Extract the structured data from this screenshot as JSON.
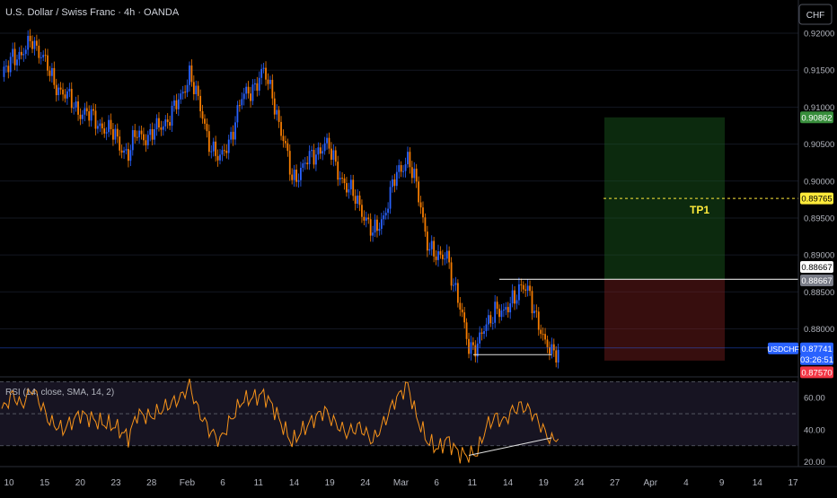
{
  "header": {
    "symbol_title": "U.S. Dollar / Swiss Franc · 4h · OANDA"
  },
  "currency_button": {
    "label": "CHF"
  },
  "colors": {
    "up": "#2962ff",
    "down": "#f57c00",
    "rsi": "#f7931a",
    "profit_zone": "#1b5e20",
    "loss_zone": "#7b1e1e",
    "tp_label": "#ffeb3b"
  },
  "chart_data": [
    {
      "type": "candlestick",
      "title": "U.S. Dollar / Swiss Franc · 4h · OANDA",
      "y_tick_labels": [
        "0.92000",
        "0.91500",
        "0.91000",
        "0.90500",
        "0.90000",
        "0.89500",
        "0.89000",
        "0.88500",
        "0.88000"
      ],
      "y_ticks": [
        0.92,
        0.915,
        0.91,
        0.905,
        0.9,
        0.895,
        0.89,
        0.885,
        0.88
      ],
      "ylim": [
        0.8735,
        0.9245
      ],
      "x_tick_labels": [
        "10",
        "15",
        "20",
        "23",
        "28",
        "Feb",
        "6",
        "11",
        "14",
        "19",
        "24",
        "Mar",
        "6",
        "11",
        "14",
        "19",
        "24",
        "27",
        "Apr",
        "4",
        "9",
        "14",
        "17"
      ],
      "price_path": [
        {
          "i": 0,
          "p": 0.9135
        },
        {
          "i": 5,
          "p": 0.9175
        },
        {
          "i": 9,
          "p": 0.9165
        },
        {
          "i": 14,
          "p": 0.9195
        },
        {
          "i": 22,
          "p": 0.9145
        },
        {
          "i": 28,
          "p": 0.9118
        },
        {
          "i": 36,
          "p": 0.9095
        },
        {
          "i": 44,
          "p": 0.908
        },
        {
          "i": 52,
          "p": 0.906
        },
        {
          "i": 58,
          "p": 0.9035
        },
        {
          "i": 62,
          "p": 0.9065
        },
        {
          "i": 68,
          "p": 0.906
        },
        {
          "i": 76,
          "p": 0.9085
        },
        {
          "i": 82,
          "p": 0.911
        },
        {
          "i": 86,
          "p": 0.915
        },
        {
          "i": 90,
          "p": 0.9105
        },
        {
          "i": 95,
          "p": 0.9055
        },
        {
          "i": 100,
          "p": 0.9025
        },
        {
          "i": 104,
          "p": 0.9055
        },
        {
          "i": 110,
          "p": 0.911
        },
        {
          "i": 115,
          "p": 0.9128
        },
        {
          "i": 120,
          "p": 0.9145
        },
        {
          "i": 124,
          "p": 0.912
        },
        {
          "i": 128,
          "p": 0.9065
        },
        {
          "i": 133,
          "p": 0.9005
        },
        {
          "i": 138,
          "p": 0.9018
        },
        {
          "i": 144,
          "p": 0.904
        },
        {
          "i": 148,
          "p": 0.905
        },
        {
          "i": 152,
          "p": 0.903
        },
        {
          "i": 158,
          "p": 0.899
        },
        {
          "i": 164,
          "p": 0.897
        },
        {
          "i": 170,
          "p": 0.8925
        },
        {
          "i": 175,
          "p": 0.8955
        },
        {
          "i": 180,
          "p": 0.9
        },
        {
          "i": 186,
          "p": 0.9035
        },
        {
          "i": 190,
          "p": 0.899
        },
        {
          "i": 195,
          "p": 0.892
        },
        {
          "i": 200,
          "p": 0.889
        },
        {
          "i": 204,
          "p": 0.8905
        },
        {
          "i": 207,
          "p": 0.886
        },
        {
          "i": 210,
          "p": 0.8825
        },
        {
          "i": 214,
          "p": 0.878
        },
        {
          "i": 218,
          "p": 0.8775
        },
        {
          "i": 222,
          "p": 0.8805
        },
        {
          "i": 226,
          "p": 0.883
        },
        {
          "i": 230,
          "p": 0.8815
        },
        {
          "i": 234,
          "p": 0.8845
        },
        {
          "i": 238,
          "p": 0.8855
        },
        {
          "i": 242,
          "p": 0.8845
        },
        {
          "i": 246,
          "p": 0.881
        },
        {
          "i": 249,
          "p": 0.8775
        },
        {
          "i": 252,
          "p": 0.8768
        },
        {
          "i": 255,
          "p": 0.8774
        }
      ],
      "position": {
        "entry": 0.88667,
        "take_profit": 0.89765,
        "target_top": 0.90862,
        "stop": 0.8757,
        "tp_label": "TP1"
      },
      "resistance_level": 0.8867,
      "support_line": {
        "from_price": 0.8765,
        "to_price": 0.8765
      },
      "current_price_line": 0.87741
    },
    {
      "type": "line",
      "title": "RSI (14, close, SMA, 14, 2)",
      "y_tick_labels": [
        "60.00",
        "40.00",
        "20.00"
      ],
      "y_ticks": [
        60,
        40,
        20
      ],
      "ylim": [
        17,
        73
      ],
      "band": [
        30,
        70
      ],
      "midline": 50,
      "rsi_path": [
        {
          "i": 0,
          "p": 52
        },
        {
          "i": 5,
          "p": 62
        },
        {
          "i": 9,
          "p": 55
        },
        {
          "i": 14,
          "p": 66
        },
        {
          "i": 22,
          "p": 45
        },
        {
          "i": 28,
          "p": 40
        },
        {
          "i": 36,
          "p": 50
        },
        {
          "i": 44,
          "p": 45
        },
        {
          "i": 52,
          "p": 42
        },
        {
          "i": 58,
          "p": 35
        },
        {
          "i": 62,
          "p": 50
        },
        {
          "i": 68,
          "p": 48
        },
        {
          "i": 76,
          "p": 55
        },
        {
          "i": 82,
          "p": 60
        },
        {
          "i": 86,
          "p": 68
        },
        {
          "i": 90,
          "p": 52
        },
        {
          "i": 95,
          "p": 40
        },
        {
          "i": 100,
          "p": 33
        },
        {
          "i": 104,
          "p": 44
        },
        {
          "i": 110,
          "p": 58
        },
        {
          "i": 115,
          "p": 60
        },
        {
          "i": 120,
          "p": 62
        },
        {
          "i": 124,
          "p": 55
        },
        {
          "i": 128,
          "p": 44
        },
        {
          "i": 133,
          "p": 32
        },
        {
          "i": 138,
          "p": 40
        },
        {
          "i": 144,
          "p": 48
        },
        {
          "i": 148,
          "p": 52
        },
        {
          "i": 152,
          "p": 45
        },
        {
          "i": 158,
          "p": 38
        },
        {
          "i": 164,
          "p": 42
        },
        {
          "i": 170,
          "p": 33
        },
        {
          "i": 175,
          "p": 44
        },
        {
          "i": 180,
          "p": 58
        },
        {
          "i": 186,
          "p": 68
        },
        {
          "i": 190,
          "p": 48
        },
        {
          "i": 195,
          "p": 33
        },
        {
          "i": 200,
          "p": 28
        },
        {
          "i": 204,
          "p": 34
        },
        {
          "i": 207,
          "p": 29
        },
        {
          "i": 210,
          "p": 25
        },
        {
          "i": 214,
          "p": 24
        },
        {
          "i": 218,
          "p": 26
        },
        {
          "i": 222,
          "p": 42
        },
        {
          "i": 226,
          "p": 48
        },
        {
          "i": 230,
          "p": 45
        },
        {
          "i": 234,
          "p": 52
        },
        {
          "i": 238,
          "p": 55
        },
        {
          "i": 242,
          "p": 52
        },
        {
          "i": 246,
          "p": 45
        },
        {
          "i": 249,
          "p": 38
        },
        {
          "i": 252,
          "p": 33
        },
        {
          "i": 255,
          "p": 36
        }
      ],
      "divergence_line": {
        "from_value": 24,
        "to_value": 35
      }
    }
  ],
  "price_badges": [
    {
      "id": "target",
      "label": "0.90862",
      "bg": "#388e3c",
      "fg": "#ffffff"
    },
    {
      "id": "tp",
      "label": "0.89765",
      "bg": "#ffeb3b",
      "fg": "#000000"
    },
    {
      "id": "entry-a",
      "label": "0.88667",
      "bg": "#ffffff",
      "fg": "#000000"
    },
    {
      "id": "entry-b",
      "label": "0.88667",
      "bg": "#787b86",
      "fg": "#ffffff"
    },
    {
      "id": "current",
      "label": "0.87741",
      "bg": "#2962ff",
      "fg": "#ffffff"
    },
    {
      "id": "countdown",
      "label": "03:26:51",
      "bg": "#2962ff",
      "fg": "#ffffff"
    },
    {
      "id": "stop",
      "label": "0.87570",
      "bg": "#f23645",
      "fg": "#ffffff"
    }
  ],
  "symbol_badge": {
    "label": "USDCHF"
  }
}
